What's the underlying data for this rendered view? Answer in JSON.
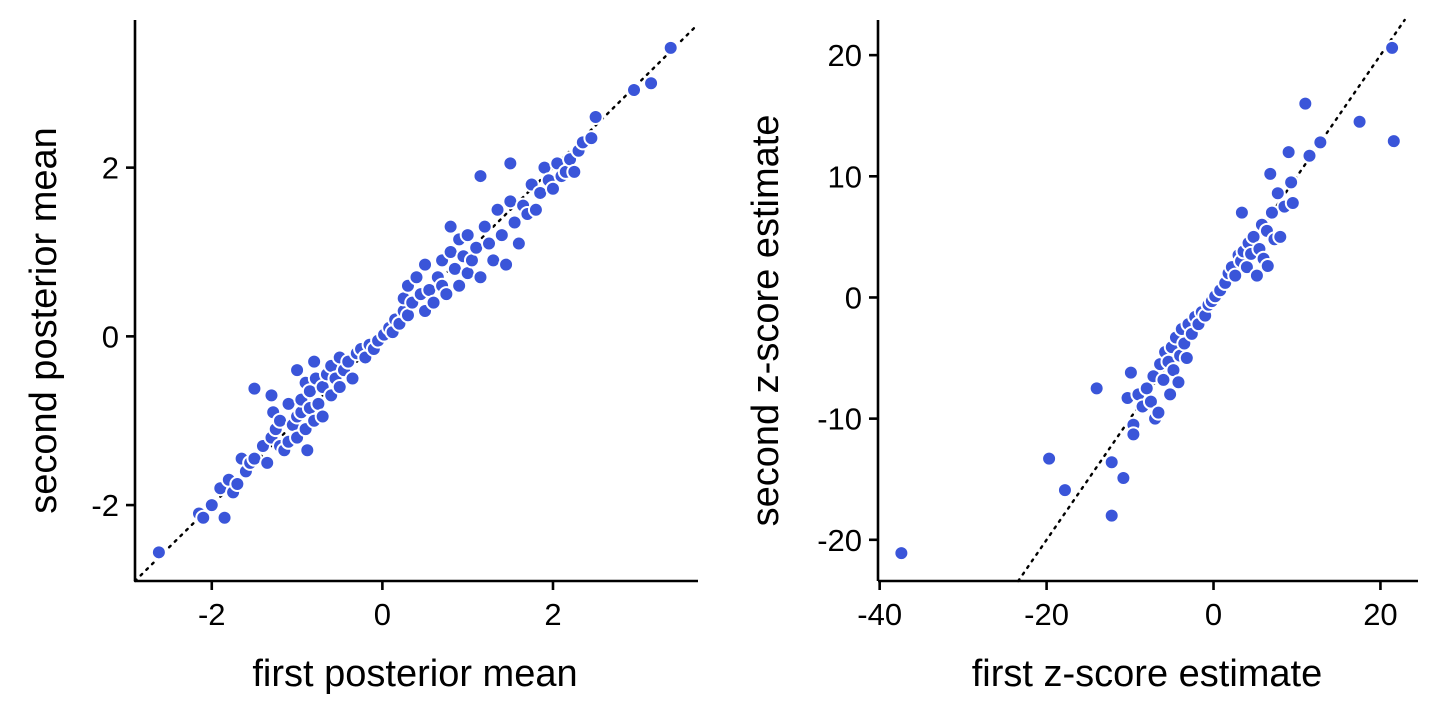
{
  "chart_data": [
    {
      "type": "scatter",
      "title": "",
      "xlabel": "first posterior mean",
      "ylabel": "second posterior mean",
      "xlim": [
        -2.9,
        3.7
      ],
      "ylim": [
        -2.9,
        3.75
      ],
      "xticks": [
        -2,
        0,
        2
      ],
      "xtick_labels": [
        "-2",
        "0",
        "2"
      ],
      "yticks": [
        -2,
        0,
        2
      ],
      "ytick_labels": [
        "-2",
        "0",
        "2"
      ],
      "reference_line": "y = x",
      "point_color": "#3a55d9",
      "points": [
        [
          -2.62,
          -2.56
        ],
        [
          -2.15,
          -2.1
        ],
        [
          -2.1,
          -2.15
        ],
        [
          -2.0,
          -2.0
        ],
        [
          -1.85,
          -2.15
        ],
        [
          -1.9,
          -1.8
        ],
        [
          -1.8,
          -1.7
        ],
        [
          -1.75,
          -1.85
        ],
        [
          -1.7,
          -1.75
        ],
        [
          -1.65,
          -1.45
        ],
        [
          -1.6,
          -1.6
        ],
        [
          -1.55,
          -1.5
        ],
        [
          -1.5,
          -1.45
        ],
        [
          -1.5,
          -0.62
        ],
        [
          -1.4,
          -1.3
        ],
        [
          -1.35,
          -1.5
        ],
        [
          -1.3,
          -0.7
        ],
        [
          -1.3,
          -1.2
        ],
        [
          -1.28,
          -0.9
        ],
        [
          -1.25,
          -1.1
        ],
        [
          -1.2,
          -1.0
        ],
        [
          -1.2,
          -1.3
        ],
        [
          -1.15,
          -1.35
        ],
        [
          -1.1,
          -1.25
        ],
        [
          -1.1,
          -0.8
        ],
        [
          -1.05,
          -1.05
        ],
        [
          -1.0,
          -0.95
        ],
        [
          -1.0,
          -1.2
        ],
        [
          -1.0,
          -0.4
        ],
        [
          -0.95,
          -0.9
        ],
        [
          -0.95,
          -0.75
        ],
        [
          -0.9,
          -1.1
        ],
        [
          -0.9,
          -0.55
        ],
        [
          -0.88,
          -1.35
        ],
        [
          -0.85,
          -0.85
        ],
        [
          -0.85,
          -0.65
        ],
        [
          -0.8,
          -1.0
        ],
        [
          -0.8,
          -0.3
        ],
        [
          -0.78,
          -0.5
        ],
        [
          -0.75,
          -0.8
        ],
        [
          -0.7,
          -0.6
        ],
        [
          -0.7,
          -0.95
        ],
        [
          -0.65,
          -0.45
        ],
        [
          -0.6,
          -0.7
        ],
        [
          -0.6,
          -0.35
        ],
        [
          -0.55,
          -0.5
        ],
        [
          -0.5,
          -0.25
        ],
        [
          -0.5,
          -0.6
        ],
        [
          -0.45,
          -0.4
        ],
        [
          -0.4,
          -0.3
        ],
        [
          -0.35,
          -0.5
        ],
        [
          -0.3,
          -0.2
        ],
        [
          -0.25,
          -0.15
        ],
        [
          -0.2,
          -0.25
        ],
        [
          -0.15,
          -0.1
        ],
        [
          -0.1,
          -0.15
        ],
        [
          -0.05,
          -0.05
        ],
        [
          0.02,
          0.02
        ],
        [
          0.08,
          0.1
        ],
        [
          0.12,
          0.05
        ],
        [
          0.15,
          0.2
        ],
        [
          0.2,
          0.15
        ],
        [
          0.25,
          0.3
        ],
        [
          0.25,
          0.45
        ],
        [
          0.3,
          0.25
        ],
        [
          0.3,
          0.6
        ],
        [
          0.35,
          0.4
        ],
        [
          0.4,
          0.7
        ],
        [
          0.45,
          0.5
        ],
        [
          0.5,
          0.3
        ],
        [
          0.5,
          0.85
        ],
        [
          0.55,
          0.55
        ],
        [
          0.6,
          0.4
        ],
        [
          0.65,
          0.7
        ],
        [
          0.7,
          0.9
        ],
        [
          0.7,
          0.6
        ],
        [
          0.75,
          0.5
        ],
        [
          0.8,
          1.3
        ],
        [
          0.8,
          1.0
        ],
        [
          0.85,
          0.8
        ],
        [
          0.9,
          1.15
        ],
        [
          0.9,
          0.6
        ],
        [
          0.95,
          0.95
        ],
        [
          1.0,
          1.2
        ],
        [
          1.0,
          0.75
        ],
        [
          1.05,
          0.9
        ],
        [
          1.1,
          1.05
        ],
        [
          1.15,
          1.9
        ],
        [
          1.15,
          0.7
        ],
        [
          1.2,
          1.3
        ],
        [
          1.25,
          1.1
        ],
        [
          1.3,
          0.9
        ],
        [
          1.35,
          1.5
        ],
        [
          1.4,
          1.2
        ],
        [
          1.45,
          0.85
        ],
        [
          1.5,
          1.6
        ],
        [
          1.5,
          2.05
        ],
        [
          1.55,
          1.35
        ],
        [
          1.6,
          1.1
        ],
        [
          1.65,
          1.55
        ],
        [
          1.7,
          1.45
        ],
        [
          1.75,
          1.8
        ],
        [
          1.8,
          1.5
        ],
        [
          1.85,
          1.7
        ],
        [
          1.9,
          2.0
        ],
        [
          1.95,
          1.85
        ],
        [
          2.0,
          1.75
        ],
        [
          2.05,
          2.05
        ],
        [
          2.1,
          1.9
        ],
        [
          2.15,
          1.95
        ],
        [
          2.2,
          2.1
        ],
        [
          2.25,
          1.95
        ],
        [
          2.3,
          2.2
        ],
        [
          2.35,
          2.3
        ],
        [
          2.45,
          2.35
        ],
        [
          2.5,
          2.6
        ],
        [
          2.95,
          2.92
        ],
        [
          3.15,
          3.0
        ],
        [
          3.38,
          3.42
        ]
      ]
    },
    {
      "type": "scatter",
      "title": "",
      "xlabel": "first z-score estimate",
      "ylabel": "second z-score estimate",
      "xlim": [
        -40.2,
        24.5
      ],
      "ylim": [
        -23.4,
        22.9
      ],
      "xticks": [
        -40,
        -20,
        0,
        20
      ],
      "xtick_labels": [
        "-40",
        "-20",
        "0",
        "20"
      ],
      "yticks": [
        -20,
        -10,
        0,
        10,
        20
      ],
      "ytick_labels": [
        "-20",
        "-10",
        "0",
        "10",
        "20"
      ],
      "reference_line": "y = x",
      "point_color": "#3a55d9",
      "points": [
        [
          -37.4,
          -21.1
        ],
        [
          -19.7,
          -13.3
        ],
        [
          -17.8,
          -15.9
        ],
        [
          -14.0,
          -7.5
        ],
        [
          -12.2,
          -13.6
        ],
        [
          -12.2,
          -18.0
        ],
        [
          -10.8,
          -14.9
        ],
        [
          -10.3,
          -8.3
        ],
        [
          -9.9,
          -6.2
        ],
        [
          -9.6,
          -10.5
        ],
        [
          -9.6,
          -11.3
        ],
        [
          -9.0,
          -8.0
        ],
        [
          -8.5,
          -9.0
        ],
        [
          -8.0,
          -7.5
        ],
        [
          -7.5,
          -8.6
        ],
        [
          -7.2,
          -6.5
        ],
        [
          -7.0,
          -10.0
        ],
        [
          -6.6,
          -9.5
        ],
        [
          -6.4,
          -5.5
        ],
        [
          -6.0,
          -6.8
        ],
        [
          -5.8,
          -4.5
        ],
        [
          -5.4,
          -5.3
        ],
        [
          -5.2,
          -8.0
        ],
        [
          -5.0,
          -4.1
        ],
        [
          -4.8,
          -6.0
        ],
        [
          -4.5,
          -3.3
        ],
        [
          -4.2,
          -7.0
        ],
        [
          -4.0,
          -4.8
        ],
        [
          -3.8,
          -2.6
        ],
        [
          -3.5,
          -3.8
        ],
        [
          -3.2,
          -5.0
        ],
        [
          -3.0,
          -2.2
        ],
        [
          -2.6,
          -3.0
        ],
        [
          -2.2,
          -1.6
        ],
        [
          -1.8,
          -2.2
        ],
        [
          -1.4,
          -1.2
        ],
        [
          -1.0,
          -1.5
        ],
        [
          -0.6,
          -0.6
        ],
        [
          -0.2,
          -0.3
        ],
        [
          0.2,
          0.1
        ],
        [
          0.8,
          0.6
        ],
        [
          1.4,
          1.2
        ],
        [
          1.8,
          2.0
        ],
        [
          2.2,
          2.5
        ],
        [
          2.6,
          1.8
        ],
        [
          3.0,
          3.5
        ],
        [
          3.3,
          3.0
        ],
        [
          3.6,
          3.8
        ],
        [
          3.4,
          7.0
        ],
        [
          4.0,
          2.5
        ],
        [
          4.2,
          4.5
        ],
        [
          4.5,
          3.6
        ],
        [
          4.8,
          5.0
        ],
        [
          5.2,
          1.8
        ],
        [
          5.5,
          4.0
        ],
        [
          5.8,
          6.0
        ],
        [
          6.0,
          3.2
        ],
        [
          6.4,
          5.5
        ],
        [
          6.5,
          2.6
        ],
        [
          6.8,
          10.2
        ],
        [
          7.0,
          7.0
        ],
        [
          7.3,
          4.8
        ],
        [
          7.7,
          8.6
        ],
        [
          8.0,
          5.0
        ],
        [
          8.5,
          7.5
        ],
        [
          9.0,
          12.0
        ],
        [
          9.3,
          9.5
        ],
        [
          9.5,
          7.8
        ],
        [
          11.0,
          16.0
        ],
        [
          11.5,
          11.7
        ],
        [
          12.8,
          12.8
        ],
        [
          17.5,
          14.5
        ],
        [
          21.4,
          20.6
        ],
        [
          21.6,
          12.9
        ]
      ]
    }
  ]
}
